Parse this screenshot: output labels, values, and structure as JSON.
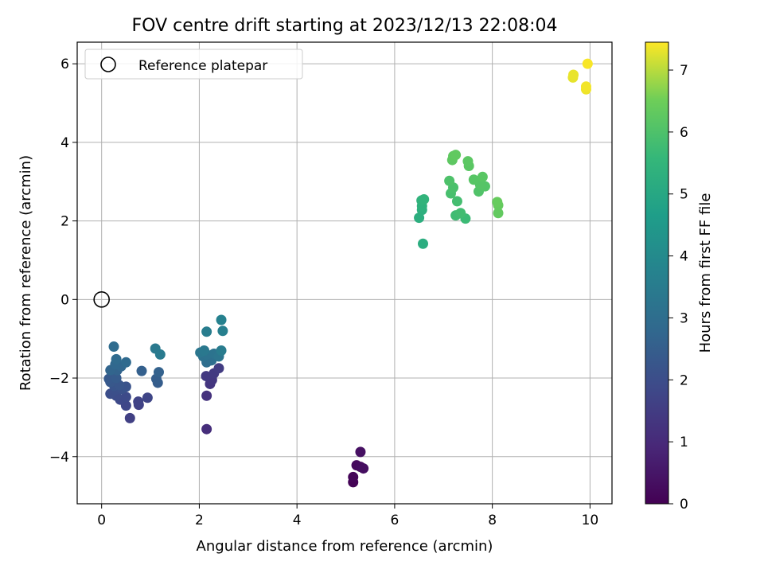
{
  "chart_data": {
    "type": "scatter",
    "title": "FOV centre drift starting at 2023/12/13 22:08:04",
    "xlabel": "Angular distance from reference (arcmin)",
    "ylabel": "Rotation from reference (arcmin)",
    "xlim": [
      -0.5,
      10.45
    ],
    "ylim": [
      -5.2,
      6.55
    ],
    "x_ticks": [
      0,
      2,
      4,
      6,
      8,
      10
    ],
    "y_ticks": [
      -4,
      -2,
      0,
      2,
      4,
      6
    ],
    "grid": true,
    "legend": {
      "placement": "top-left",
      "entries": [
        "Reference platepar"
      ]
    },
    "reference_point": {
      "x": 0,
      "y": 0,
      "label": "Reference platepar"
    },
    "colorbar": {
      "label": "Hours from first FF file",
      "colormap": "viridis",
      "range": [
        0,
        7.45
      ],
      "ticks": [
        0,
        1,
        2,
        3,
        4,
        5,
        6,
        7
      ]
    },
    "series": [
      {
        "points": [
          {
            "x": 5.15,
            "y": -4.65,
            "c": 0.05
          },
          {
            "x": 5.15,
            "y": -4.52,
            "c": 0.1
          },
          {
            "x": 5.22,
            "y": -4.22,
            "c": 0.2
          },
          {
            "x": 5.3,
            "y": -4.26,
            "c": 0.25
          },
          {
            "x": 5.36,
            "y": -4.3,
            "c": 0.3
          },
          {
            "x": 5.3,
            "y": -3.88,
            "c": 0.35
          },
          {
            "x": 2.15,
            "y": -3.3,
            "c": 1.1
          },
          {
            "x": 2.15,
            "y": -2.45,
            "c": 1.2
          },
          {
            "x": 2.22,
            "y": -2.15,
            "c": 1.3
          },
          {
            "x": 2.26,
            "y": -2.05,
            "c": 1.35
          },
          {
            "x": 2.14,
            "y": -1.95,
            "c": 1.4
          },
          {
            "x": 2.3,
            "y": -1.88,
            "c": 1.45
          },
          {
            "x": 2.4,
            "y": -1.75,
            "c": 1.5
          },
          {
            "x": 0.58,
            "y": -3.02,
            "c": 1.6
          },
          {
            "x": 0.76,
            "y": -2.68,
            "c": 1.65
          },
          {
            "x": 0.75,
            "y": -2.6,
            "c": 1.7
          },
          {
            "x": 0.94,
            "y": -2.5,
            "c": 1.75
          },
          {
            "x": 0.5,
            "y": -2.7,
            "c": 1.8
          },
          {
            "x": 0.38,
            "y": -2.55,
            "c": 1.85
          },
          {
            "x": 0.5,
            "y": -2.48,
            "c": 1.9
          },
          {
            "x": 0.3,
            "y": -2.45,
            "c": 1.95
          },
          {
            "x": 0.18,
            "y": -2.4,
            "c": 2.0
          },
          {
            "x": 0.28,
            "y": -2.3,
            "c": 2.05
          },
          {
            "x": 0.42,
            "y": -2.28,
            "c": 2.1
          },
          {
            "x": 0.5,
            "y": -2.22,
            "c": 2.15
          },
          {
            "x": 0.26,
            "y": -2.2,
            "c": 2.2
          },
          {
            "x": 0.36,
            "y": -2.18,
            "c": 2.25
          },
          {
            "x": 0.18,
            "y": -2.1,
            "c": 2.3
          },
          {
            "x": 0.15,
            "y": -2.02,
            "c": 2.35
          },
          {
            "x": 0.3,
            "y": -2.0,
            "c": 2.4
          },
          {
            "x": 1.15,
            "y": -2.12,
            "c": 2.45
          },
          {
            "x": 1.12,
            "y": -2.02,
            "c": 2.5
          },
          {
            "x": 0.82,
            "y": -1.82,
            "c": 2.55
          },
          {
            "x": 1.17,
            "y": -1.85,
            "c": 2.6
          },
          {
            "x": 0.32,
            "y": -1.8,
            "c": 2.65
          },
          {
            "x": 0.18,
            "y": -1.8,
            "c": 2.7
          },
          {
            "x": 0.4,
            "y": -1.7,
            "c": 2.75
          },
          {
            "x": 0.28,
            "y": -1.65,
            "c": 2.8
          },
          {
            "x": 0.5,
            "y": -1.6,
            "c": 2.85
          },
          {
            "x": 0.3,
            "y": -1.52,
            "c": 2.9
          },
          {
            "x": 0.25,
            "y": -1.2,
            "c": 2.95
          },
          {
            "x": 2.15,
            "y": -1.6,
            "c": 3.0
          },
          {
            "x": 2.25,
            "y": -1.55,
            "c": 3.05
          },
          {
            "x": 2.08,
            "y": -1.45,
            "c": 3.1
          },
          {
            "x": 2.15,
            "y": -1.4,
            "c": 3.15
          },
          {
            "x": 2.3,
            "y": -1.38,
            "c": 3.2
          },
          {
            "x": 2.4,
            "y": -1.45,
            "c": 3.25
          },
          {
            "x": 2.02,
            "y": -1.35,
            "c": 3.3
          },
          {
            "x": 2.1,
            "y": -1.3,
            "c": 3.35
          },
          {
            "x": 1.1,
            "y": -1.25,
            "c": 3.4
          },
          {
            "x": 1.2,
            "y": -1.4,
            "c": 3.45
          },
          {
            "x": 2.45,
            "y": -1.3,
            "c": 3.5
          },
          {
            "x": 2.15,
            "y": -0.82,
            "c": 3.55
          },
          {
            "x": 2.48,
            "y": -0.8,
            "c": 3.6
          },
          {
            "x": 2.45,
            "y": -0.52,
            "c": 3.7
          },
          {
            "x": 6.58,
            "y": 1.42,
            "c": 5.2
          },
          {
            "x": 6.5,
            "y": 2.08,
            "c": 5.25
          },
          {
            "x": 6.56,
            "y": 2.28,
            "c": 5.3
          },
          {
            "x": 6.56,
            "y": 2.38,
            "c": 5.35
          },
          {
            "x": 6.55,
            "y": 2.52,
            "c": 5.4
          },
          {
            "x": 6.6,
            "y": 2.55,
            "c": 5.45
          },
          {
            "x": 7.45,
            "y": 2.06,
            "c": 5.7
          },
          {
            "x": 7.25,
            "y": 2.14,
            "c": 5.75
          },
          {
            "x": 7.35,
            "y": 2.2,
            "c": 5.8
          },
          {
            "x": 7.28,
            "y": 2.5,
            "c": 5.85
          },
          {
            "x": 7.15,
            "y": 2.7,
            "c": 5.9
          },
          {
            "x": 7.2,
            "y": 2.85,
            "c": 5.95
          },
          {
            "x": 7.12,
            "y": 3.02,
            "c": 6.0
          },
          {
            "x": 7.72,
            "y": 2.75,
            "c": 6.05
          },
          {
            "x": 7.85,
            "y": 2.88,
            "c": 6.1
          },
          {
            "x": 7.75,
            "y": 2.92,
            "c": 6.12
          },
          {
            "x": 7.62,
            "y": 3.05,
            "c": 6.15
          },
          {
            "x": 7.8,
            "y": 3.12,
            "c": 6.18
          },
          {
            "x": 7.52,
            "y": 3.4,
            "c": 6.2
          },
          {
            "x": 7.5,
            "y": 3.52,
            "c": 6.22
          },
          {
            "x": 7.18,
            "y": 3.55,
            "c": 6.25
          },
          {
            "x": 7.2,
            "y": 3.65,
            "c": 6.28
          },
          {
            "x": 7.25,
            "y": 3.68,
            "c": 6.3
          },
          {
            "x": 8.12,
            "y": 2.2,
            "c": 6.32
          },
          {
            "x": 8.12,
            "y": 2.4,
            "c": 6.35
          },
          {
            "x": 8.1,
            "y": 2.48,
            "c": 6.38
          },
          {
            "x": 9.65,
            "y": 5.65,
            "c": 7.3
          },
          {
            "x": 9.66,
            "y": 5.72,
            "c": 7.32
          },
          {
            "x": 9.92,
            "y": 5.35,
            "c": 7.35
          },
          {
            "x": 9.92,
            "y": 5.42,
            "c": 7.38
          },
          {
            "x": 9.95,
            "y": 6.0,
            "c": 7.42
          }
        ]
      }
    ]
  }
}
